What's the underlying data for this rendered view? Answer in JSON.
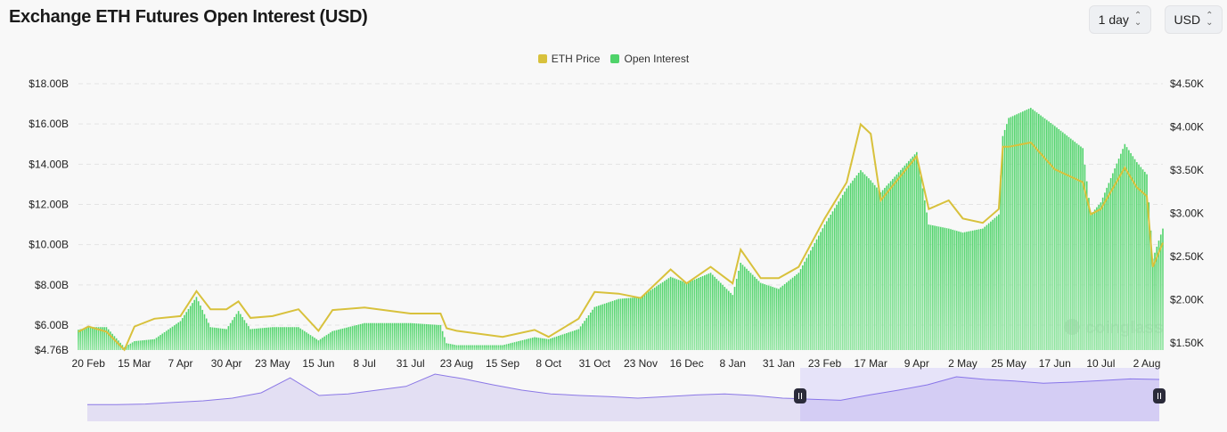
{
  "title": "Exchange ETH Futures Open Interest (USD)",
  "controls": {
    "interval": {
      "value": "1 day"
    },
    "currency": {
      "value": "USD"
    }
  },
  "watermark": "coinglass",
  "chart_data": {
    "type": "bar+line",
    "title": "Exchange ETH Futures Open Interest (USD)",
    "legend": {
      "placement": "top-center",
      "entries": [
        "ETH Price",
        "Open Interest"
      ]
    },
    "colors": {
      "ETH Price": "#d8c13c",
      "Open Interest": "#4fd36a"
    },
    "grid": true,
    "y_left": {
      "label": "",
      "ticks": [
        "$4.76B",
        "$6.00B",
        "$8.00B",
        "$10.00B",
        "$12.00B",
        "$14.00B",
        "$16.00B",
        "$18.00B"
      ],
      "range": [
        4.76,
        18.0
      ],
      "unit": "USD billions"
    },
    "y_right": {
      "label": "",
      "ticks": [
        "$1.50K",
        "$2.00K",
        "$2.50K",
        "$3.00K",
        "$3.50K",
        "$4.00K",
        "$4.50K"
      ],
      "range": [
        1.5,
        4.5
      ],
      "unit": "USD thousands"
    },
    "x_ticks": [
      "20 Feb",
      "15 Mar",
      "7 Apr",
      "30 Apr",
      "23 May",
      "15 Jun",
      "8 Jul",
      "31 Jul",
      "23 Aug",
      "15 Sep",
      "8 Oct",
      "31 Oct",
      "23 Nov",
      "16 Dec",
      "8 Jan",
      "31 Jan",
      "23 Feb",
      "17 Mar",
      "9 Apr",
      "2 May",
      "25 May",
      "17 Jun",
      "10 Jul",
      "2 Aug"
    ],
    "x": [
      "2023-02-15",
      "2023-02-20",
      "2023-03-01",
      "2023-03-10",
      "2023-03-15",
      "2023-03-25",
      "2023-04-07",
      "2023-04-15",
      "2023-04-22",
      "2023-04-30",
      "2023-05-06",
      "2023-05-12",
      "2023-05-23",
      "2023-06-05",
      "2023-06-15",
      "2023-06-22",
      "2023-07-08",
      "2023-07-31",
      "2023-08-15",
      "2023-08-18",
      "2023-08-23",
      "2023-09-15",
      "2023-10-01",
      "2023-10-08",
      "2023-10-23",
      "2023-10-31",
      "2023-11-12",
      "2023-11-23",
      "2023-12-08",
      "2023-12-16",
      "2023-12-28",
      "2024-01-08",
      "2024-01-12",
      "2024-01-22",
      "2024-01-31",
      "2024-02-10",
      "2024-02-23",
      "2024-03-05",
      "2024-03-12",
      "2024-03-17",
      "2024-03-22",
      "2024-04-09",
      "2024-04-15",
      "2024-04-25",
      "2024-05-02",
      "2024-05-12",
      "2024-05-20",
      "2024-05-22",
      "2024-05-25",
      "2024-06-05",
      "2024-06-17",
      "2024-07-01",
      "2024-07-05",
      "2024-07-10",
      "2024-07-22",
      "2024-07-28",
      "2024-08-02",
      "2024-08-05",
      "2024-08-10"
    ],
    "series": [
      {
        "name": "Open Interest",
        "type": "bar",
        "axis": "left",
        "values": [
          5.77,
          5.9,
          5.9,
          4.9,
          5.2,
          5.3,
          6.2,
          7.4,
          5.9,
          5.8,
          6.7,
          5.8,
          5.9,
          5.9,
          5.24,
          5.7,
          6.1,
          6.1,
          6.0,
          5.1,
          5.0,
          5.0,
          5.4,
          5.3,
          5.8,
          6.9,
          7.3,
          7.4,
          8.4,
          8.1,
          8.6,
          7.5,
          9.1,
          8.1,
          7.8,
          8.6,
          11.0,
          12.8,
          13.7,
          13.2,
          12.6,
          14.6,
          11.0,
          10.8,
          10.6,
          10.8,
          11.5,
          15.4,
          16.3,
          16.8,
          15.9,
          14.8,
          11.5,
          12.1,
          15.0,
          14.1,
          13.5,
          9.3,
          10.8
        ]
      },
      {
        "name": "ETH Price",
        "type": "line",
        "axis": "right",
        "values": [
          1.63,
          1.69,
          1.63,
          1.42,
          1.69,
          1.78,
          1.81,
          2.1,
          1.89,
          1.89,
          1.98,
          1.79,
          1.81,
          1.89,
          1.64,
          1.88,
          1.91,
          1.84,
          1.84,
          1.67,
          1.64,
          1.57,
          1.65,
          1.57,
          1.78,
          2.09,
          2.07,
          2.02,
          2.35,
          2.19,
          2.38,
          2.19,
          2.58,
          2.25,
          2.25,
          2.38,
          2.94,
          3.36,
          4.03,
          3.92,
          3.15,
          3.66,
          3.05,
          3.15,
          2.94,
          2.89,
          3.05,
          3.77,
          3.77,
          3.82,
          3.51,
          3.36,
          2.99,
          3.05,
          3.53,
          3.3,
          3.2,
          2.38,
          2.66
        ]
      }
    ]
  },
  "navigator": {
    "selection": [
      0.665,
      1.0
    ],
    "series": [
      18,
      18,
      19,
      22,
      25,
      30,
      40,
      68,
      35,
      38,
      45,
      52,
      75,
      66,
      55,
      45,
      38,
      35,
      33,
      30,
      33,
      36,
      38,
      35,
      30,
      28,
      26,
      36,
      45,
      55,
      70,
      65,
      62,
      58,
      60,
      63,
      66,
      65
    ]
  }
}
